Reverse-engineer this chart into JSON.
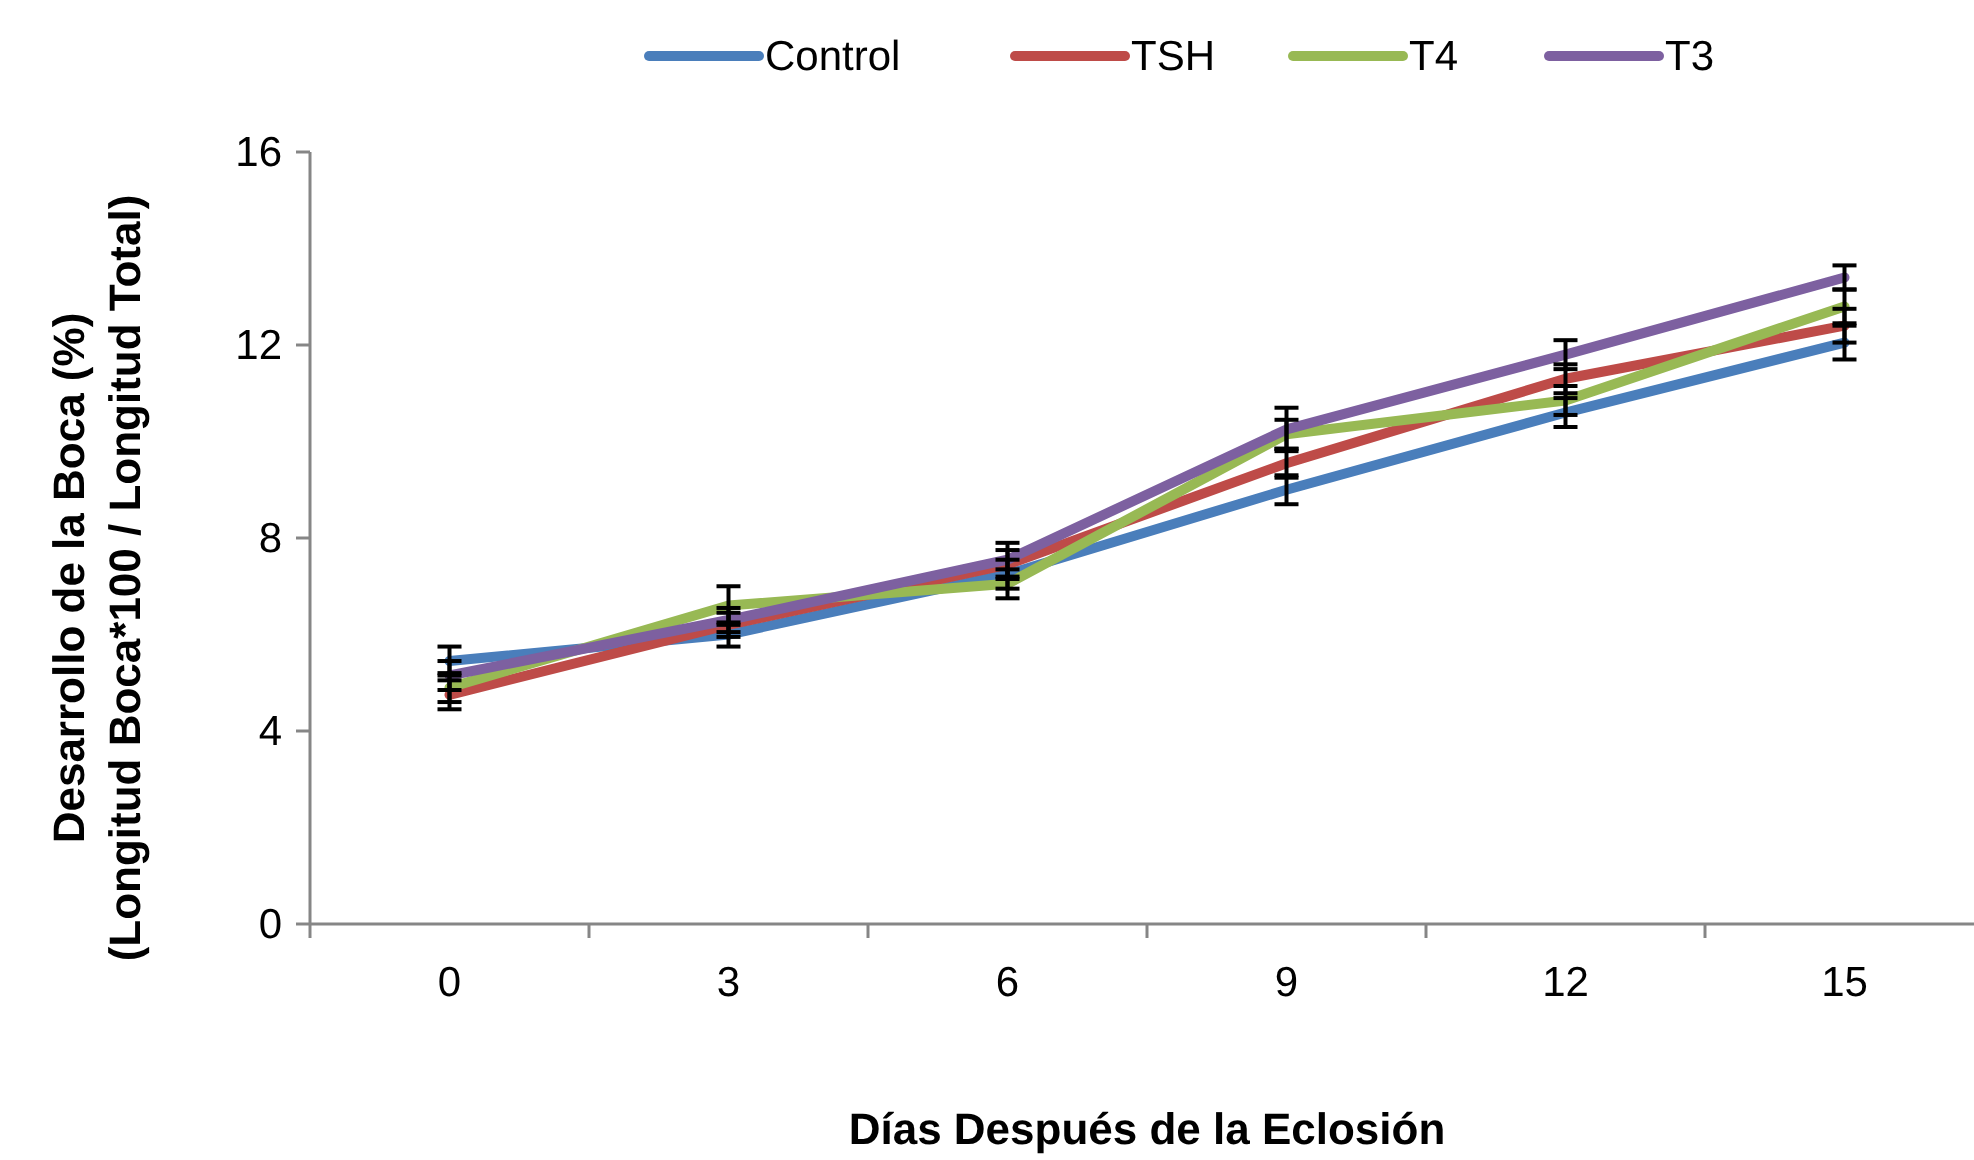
{
  "chart_data": {
    "type": "line",
    "xlabel": "Días Después de la Eclosión",
    "ylabel": "Desarrollo de la Boca (%)\n(Longitud Boca*100 / Longitud Total)",
    "categories": [
      "0",
      "3",
      "6",
      "9",
      "12",
      "15"
    ],
    "ylim": [
      0,
      16
    ],
    "yticks": [
      0,
      4,
      8,
      12,
      16
    ],
    "grid": false,
    "legend": "top",
    "marker": "none",
    "line_style": "solid",
    "series": [
      {
        "name": "Control",
        "color": "#4a7ebb",
        "values": [
          5.45,
          6.0,
          7.25,
          9.0,
          10.6,
          12.05
        ],
        "errors": [
          0.3,
          0.25,
          0.3,
          0.3,
          0.3,
          0.35
        ]
      },
      {
        "name": "TSH",
        "color": "#be4b48",
        "values": [
          4.75,
          6.2,
          7.45,
          9.55,
          11.3,
          12.4
        ],
        "errors": [
          0.3,
          0.25,
          0.3,
          0.3,
          0.3,
          0.35
        ]
      },
      {
        "name": "T4",
        "color": "#98b954",
        "values": [
          4.9,
          6.6,
          7.05,
          10.15,
          10.85,
          12.8
        ],
        "errors": [
          0.3,
          0.4,
          0.3,
          0.3,
          0.3,
          0.35
        ]
      },
      {
        "name": "T3",
        "color": "#7d60a0",
        "values": [
          5.15,
          6.3,
          7.55,
          10.25,
          11.8,
          13.4
        ],
        "errors": [
          0.3,
          0.25,
          0.35,
          0.45,
          0.3,
          0.25
        ]
      }
    ]
  }
}
